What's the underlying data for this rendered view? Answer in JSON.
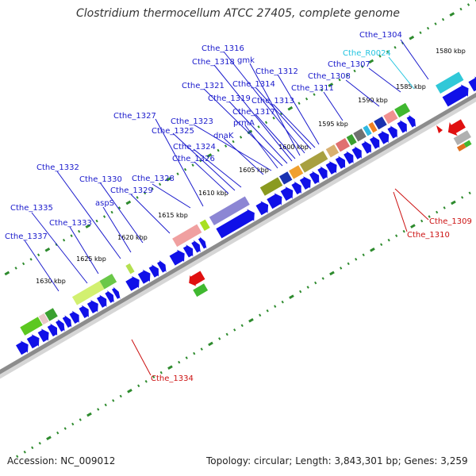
{
  "title": "Clostridium thermocellum ATCC 27405, complete genome",
  "footer": {
    "accession": "Accession: NC_009012",
    "summary": "Topology: circular; Length: 3,843,301 bp; Genes: 3,259"
  },
  "colors": {
    "forward_label": "#1a1acc",
    "reverse_label": "#cc1111",
    "rna_label": "#22c4e0",
    "backbone": "#8c8c8c",
    "ruler_tick": "#2e8b2e"
  },
  "ruler_labels": [
    "1580 kbp",
    "1585 kbp",
    "1590 kbp",
    "1595 kbp",
    "1600 kbp",
    "1605 kbp",
    "1610 kbp",
    "1615 kbp",
    "1620 kbp",
    "1625 kbp",
    "1630 kbp"
  ],
  "forward_labels": [
    "Cthe_1304",
    "Cthe_1307",
    "Cthe_1308",
    "Cthe_1311",
    "Cthe_1312",
    "Cthe_1313",
    "Cthe_1314",
    "Cthe_1316",
    "gmk",
    "Cthe_1317",
    "Cthe_1318",
    "Cthe_1319",
    "Cthe_1321",
    "prmA",
    "Cthe_1323",
    "dnaK",
    "Cthe_1324",
    "Cthe_1325",
    "Cthe_1326",
    "Cthe_1327",
    "Cthe_1328",
    "Cthe_1329",
    "Cthe_1330",
    "aspS",
    "Cthe_1332",
    "Cthe_1333",
    "Cthe_1335",
    "Cthe_1337"
  ],
  "rna_labels": [
    "Cthe_R0024"
  ],
  "reverse_labels": [
    "Cthe_1309",
    "Cthe_1310",
    "Cthe_1334"
  ]
}
